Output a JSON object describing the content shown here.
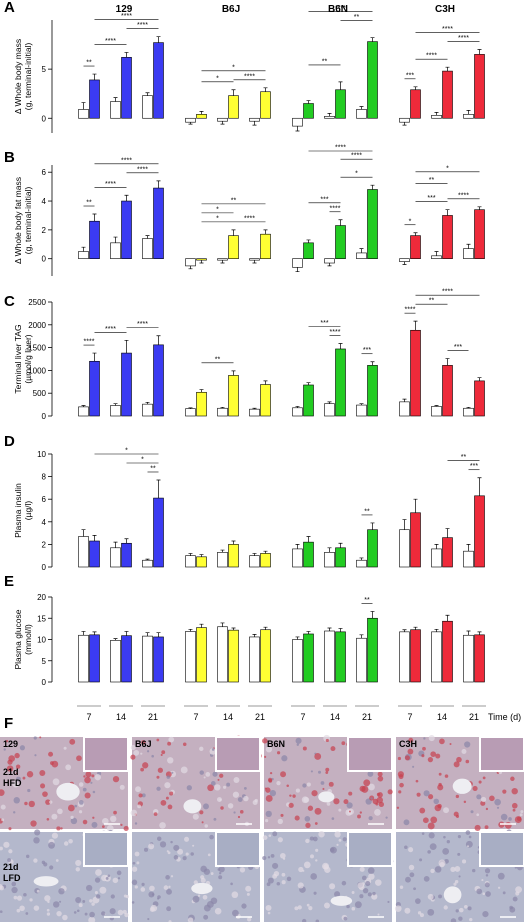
{
  "chart_data": [
    {
      "type": "bar",
      "panel": "A",
      "groups": [
        "129",
        "B6J",
        "B6N",
        "C3H"
      ],
      "y_label": [
        "Δ Whole body mass",
        "(g, terminal-initial)"
      ],
      "ylim": [
        -1.5,
        10
      ],
      "yticks": [
        0,
        5
      ],
      "values": [
        0.9,
        3.9,
        1.7,
        6.2,
        2.3,
        7.7,
        -0.4,
        0.4,
        -0.3,
        2.3,
        -0.3,
        2.7,
        -0.8,
        1.5,
        0.2,
        2.9,
        0.9,
        7.8,
        -0.4,
        2.9,
        0.3,
        4.8,
        0.4,
        6.5
      ],
      "errors": [
        0.7,
        0.6,
        0.4,
        0.5,
        0.3,
        0.6,
        0.2,
        0.3,
        0.3,
        0.6,
        0.4,
        0.4,
        0.5,
        0.3,
        0.3,
        0.8,
        0.3,
        0.4,
        0.3,
        0.3,
        0.3,
        0.4,
        0.4,
        0.5
      ],
      "annotations": [
        "**",
        "****",
        "****",
        "****",
        "*",
        "*",
        "****",
        "****",
        "**",
        "**",
        "***",
        "****",
        "****",
        "****"
      ]
    },
    {
      "type": "bar",
      "panel": "B",
      "y_label": [
        "Δ Whole body fat mass",
        "(g, terminal-initial)"
      ],
      "ylim": [
        -1.2,
        6.5
      ],
      "yticks": [
        0,
        2,
        4,
        6
      ],
      "values": [
        0.5,
        2.6,
        1.1,
        4.0,
        1.4,
        4.9,
        -0.5,
        -0.1,
        -0.1,
        1.6,
        -0.1,
        1.7,
        -0.6,
        1.1,
        -0.3,
        2.3,
        0.4,
        4.8,
        -0.2,
        1.6,
        0.2,
        3.0,
        0.7,
        3.4
      ],
      "errors": [
        0.3,
        0.5,
        0.4,
        0.4,
        0.2,
        0.5,
        0.2,
        0.2,
        0.2,
        0.4,
        0.2,
        0.3,
        0.3,
        0.2,
        0.2,
        0.4,
        0.3,
        0.3,
        0.2,
        0.2,
        0.3,
        0.4,
        0.3,
        0.2
      ],
      "annotations": [
        "**",
        "****",
        "****",
        "****",
        "**",
        "*",
        "*",
        "****",
        "****",
        "****",
        "***",
        "****",
        "*",
        "*",
        "**",
        "*",
        "***",
        "****"
      ]
    },
    {
      "type": "bar",
      "panel": "C",
      "y_label": [
        "Terminal liver TAG",
        "(µmol/g liver)"
      ],
      "ylim": [
        0,
        2500
      ],
      "yticks": [
        0,
        500,
        1000,
        1500,
        2000,
        2500
      ],
      "values": [
        200,
        1200,
        230,
        1380,
        260,
        1560,
        160,
        520,
        170,
        890,
        150,
        690,
        180,
        680,
        270,
        1470,
        240,
        1110,
        310,
        1880,
        210,
        1110,
        170,
        770
      ],
      "errors": [
        30,
        180,
        40,
        280,
        40,
        200,
        20,
        60,
        20,
        100,
        20,
        80,
        30,
        50,
        40,
        120,
        30,
        80,
        60,
        200,
        20,
        150,
        20,
        70
      ],
      "annotations": [
        "****",
        "****",
        "****",
        "**",
        "***",
        "****",
        "***",
        "****",
        "****",
        "**",
        "***"
      ]
    },
    {
      "type": "bar",
      "panel": "D",
      "y_label": [
        "Plasma insulin",
        "(µg/l)"
      ],
      "ylim": [
        0,
        10
      ],
      "yticks": [
        0,
        2,
        4,
        6,
        8,
        10
      ],
      "values": [
        2.7,
        2.3,
        1.7,
        2.1,
        0.6,
        6.1,
        1.0,
        0.9,
        1.3,
        2.0,
        1.0,
        1.2,
        1.6,
        2.2,
        1.3,
        1.7,
        0.6,
        3.3,
        3.3,
        4.8,
        1.6,
        2.6,
        1.4,
        6.3
      ],
      "errors": [
        0.6,
        0.5,
        0.5,
        0.4,
        0.1,
        1.6,
        0.2,
        0.2,
        0.2,
        0.3,
        0.2,
        0.2,
        0.4,
        0.5,
        0.4,
        0.4,
        0.2,
        0.6,
        0.9,
        1.2,
        0.4,
        0.8,
        0.6,
        1.6
      ],
      "annotations": [
        "*",
        "*",
        "**",
        "**",
        "**",
        "***"
      ]
    },
    {
      "type": "bar",
      "panel": "E",
      "y_label": [
        "Plasma glucose",
        "(mmol/l)"
      ],
      "ylim": [
        0,
        20
      ],
      "yticks": [
        0,
        5,
        10,
        15,
        20
      ],
      "values": [
        11.0,
        11.1,
        9.8,
        10.9,
        10.8,
        10.6,
        11.9,
        12.8,
        13.0,
        12.2,
        10.6,
        12.3,
        10.0,
        11.3,
        12.0,
        11.8,
        10.3,
        15.0,
        11.8,
        12.3,
        11.8,
        14.3,
        11.0,
        11.1
      ],
      "errors": [
        0.9,
        0.7,
        0.4,
        1.0,
        0.8,
        1.0,
        0.5,
        0.8,
        0.9,
        0.5,
        0.6,
        0.6,
        0.6,
        0.6,
        0.7,
        0.8,
        0.8,
        1.6,
        0.5,
        0.6,
        0.6,
        1.4,
        1.0,
        0.7
      ],
      "annotations": [
        "**"
      ],
      "times": [
        "7",
        "14",
        "21"
      ],
      "x_label": "Time (d)"
    }
  ],
  "bar_colors": {
    "lfd": "#ffffff",
    "hfd": [
      "#3b3bf2",
      "#ffff33",
      "#22cc22",
      "#ee2a3a"
    ]
  },
  "histology": {
    "panel": "F",
    "strains": [
      "129",
      "B6J",
      "B6N",
      "C3H"
    ],
    "rows": [
      [
        "21d",
        "HFD"
      ],
      [
        "21d",
        "LFD"
      ]
    ]
  }
}
